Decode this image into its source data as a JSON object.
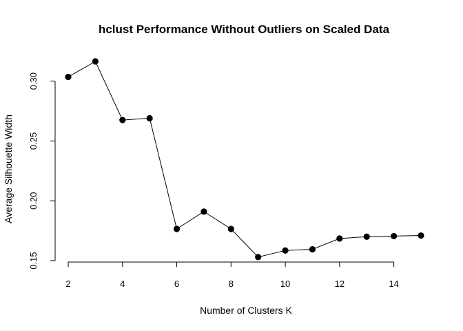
{
  "chart_data": {
    "type": "line",
    "title": "hclust Performance Without Outliers on Scaled Data",
    "xlabel": "Number of Clusters K",
    "ylabel": "Average Silhouette Width",
    "x": [
      2,
      3,
      4,
      5,
      6,
      7,
      8,
      9,
      10,
      11,
      12,
      13,
      14,
      15
    ],
    "y": [
      0.3035,
      0.3165,
      0.2675,
      0.269,
      0.1765,
      0.191,
      0.1765,
      0.153,
      0.1585,
      0.1595,
      0.1685,
      0.17,
      0.1705,
      0.171
    ],
    "xticks": [
      2,
      4,
      6,
      8,
      10,
      12,
      14
    ],
    "yticks": [
      "0.15",
      "0.20",
      "0.25",
      "0.30"
    ],
    "xlim": [
      2,
      15
    ],
    "ylim": [
      0.15,
      0.3165
    ],
    "grid": false,
    "marker": "filled-circle",
    "line_color": "#000000"
  }
}
